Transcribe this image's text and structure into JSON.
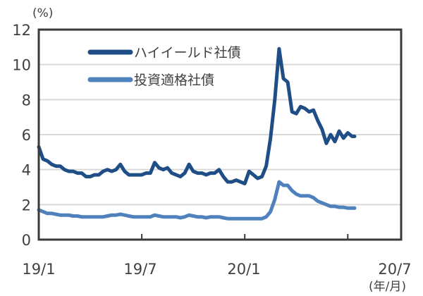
{
  "chart_data": {
    "type": "line",
    "title": "",
    "ylabel": "(%)",
    "xlabel": "(年/月)",
    "ylim": [
      0,
      12
    ],
    "yticks": [
      0,
      2,
      4,
      6,
      8,
      10,
      12
    ],
    "xticks": [
      "19/1",
      "19/7",
      "20/1",
      "20/7"
    ],
    "grid": true,
    "legend_position": "upper-left-inside",
    "x_months": [
      0,
      0.25,
      0.5,
      0.75,
      1,
      1.25,
      1.5,
      1.75,
      2,
      2.25,
      2.5,
      2.75,
      3,
      3.25,
      3.5,
      3.75,
      4,
      4.25,
      4.5,
      4.75,
      5,
      5.25,
      5.5,
      5.75,
      6,
      6.25,
      6.5,
      6.75,
      7,
      7.25,
      7.5,
      7.75,
      8,
      8.25,
      8.5,
      8.75,
      9,
      9.25,
      9.5,
      9.75,
      10,
      10.25,
      10.5,
      10.75,
      11,
      11.25,
      11.5,
      11.75,
      12,
      12.25,
      12.5,
      12.75,
      13,
      13.25,
      13.5,
      13.75,
      14,
      14.25,
      14.5,
      14.75,
      15,
      15.25,
      15.5,
      15.75,
      16,
      16.25,
      16.5,
      16.75,
      17,
      17.25,
      17.5,
      17.75,
      18,
      18.25,
      18.4
    ],
    "series": [
      {
        "name": "ハイイールド社債",
        "color": "#1f4e87",
        "values": [
          5.3,
          4.6,
          4.5,
          4.3,
          4.2,
          4.2,
          4.0,
          3.9,
          3.9,
          3.8,
          3.8,
          3.6,
          3.6,
          3.7,
          3.7,
          3.9,
          4.0,
          3.9,
          4.0,
          4.3,
          3.9,
          3.7,
          3.7,
          3.7,
          3.7,
          3.8,
          3.8,
          4.4,
          4.1,
          4.0,
          4.1,
          3.8,
          3.7,
          3.6,
          3.8,
          4.3,
          3.9,
          3.8,
          3.8,
          3.7,
          3.8,
          3.8,
          4.0,
          3.6,
          3.3,
          3.3,
          3.4,
          3.3,
          3.2,
          3.9,
          3.7,
          3.5,
          3.6,
          4.2,
          5.8,
          8.0,
          10.9,
          9.2,
          9.0,
          7.3,
          7.2,
          7.6,
          7.5,
          7.3,
          7.4,
          6.8,
          6.3,
          5.5,
          6.0,
          5.6,
          6.2,
          5.8,
          6.1,
          5.9,
          5.9
        ]
      },
      {
        "name": "投資適格社債",
        "color": "#4f81bd",
        "values": [
          1.7,
          1.6,
          1.5,
          1.5,
          1.45,
          1.4,
          1.4,
          1.4,
          1.35,
          1.35,
          1.3,
          1.3,
          1.3,
          1.3,
          1.3,
          1.3,
          1.35,
          1.4,
          1.4,
          1.45,
          1.4,
          1.35,
          1.3,
          1.3,
          1.3,
          1.3,
          1.3,
          1.4,
          1.35,
          1.3,
          1.3,
          1.3,
          1.3,
          1.25,
          1.3,
          1.4,
          1.35,
          1.3,
          1.3,
          1.25,
          1.3,
          1.3,
          1.3,
          1.25,
          1.2,
          1.2,
          1.2,
          1.2,
          1.2,
          1.2,
          1.2,
          1.2,
          1.2,
          1.3,
          1.6,
          2.3,
          3.3,
          3.1,
          3.1,
          2.8,
          2.6,
          2.5,
          2.5,
          2.5,
          2.4,
          2.2,
          2.1,
          2.0,
          1.9,
          1.9,
          1.85,
          1.85,
          1.8,
          1.8,
          1.8
        ]
      }
    ]
  },
  "axes": {
    "y_unit": "(%)",
    "x_unit": "(年/月)",
    "y_ticks": [
      "0",
      "2",
      "4",
      "6",
      "8",
      "10",
      "12"
    ],
    "x_ticks": [
      "19/1",
      "19/7",
      "20/1",
      "20/7"
    ]
  },
  "legend": {
    "items": [
      {
        "label": "ハイイールド社債",
        "color": "#1f4e87"
      },
      {
        "label": "投資適格社債",
        "color": "#4f81bd"
      }
    ]
  }
}
